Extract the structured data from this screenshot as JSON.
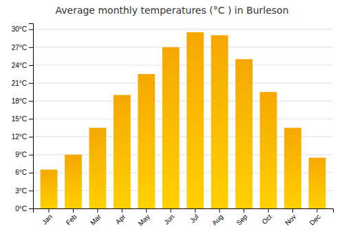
{
  "chart_data": {
    "type": "bar",
    "title": "Average monthly temperatures (°C ) in Burleson",
    "categories": [
      "Jan",
      "Feb",
      "Mar",
      "Apr",
      "May",
      "Jun",
      "Jul",
      "Aug",
      "Sep",
      "Oct",
      "Nov",
      "Dec"
    ],
    "values": [
      6.5,
      9.0,
      13.5,
      19.0,
      22.5,
      27.0,
      29.5,
      29.0,
      25.0,
      19.5,
      13.5,
      8.5
    ],
    "color": "#F5A800",
    "ylim": [
      0,
      31
    ],
    "yticks": [
      {
        "value": 0,
        "label": "0°C"
      },
      {
        "value": 3,
        "label": "3°C"
      },
      {
        "value": 6,
        "label": "6°C"
      },
      {
        "value": 9,
        "label": "9°C"
      },
      {
        "value": 12,
        "label": "12°C"
      },
      {
        "value": 15,
        "label": "15°C"
      },
      {
        "value": 18,
        "label": "18°C"
      },
      {
        "value": 21,
        "label": "21°C"
      },
      {
        "value": 24,
        "label": "24°C"
      },
      {
        "value": 27,
        "label": "27°C"
      },
      {
        "value": 30,
        "label": "30°C"
      }
    ],
    "grid": true
  }
}
